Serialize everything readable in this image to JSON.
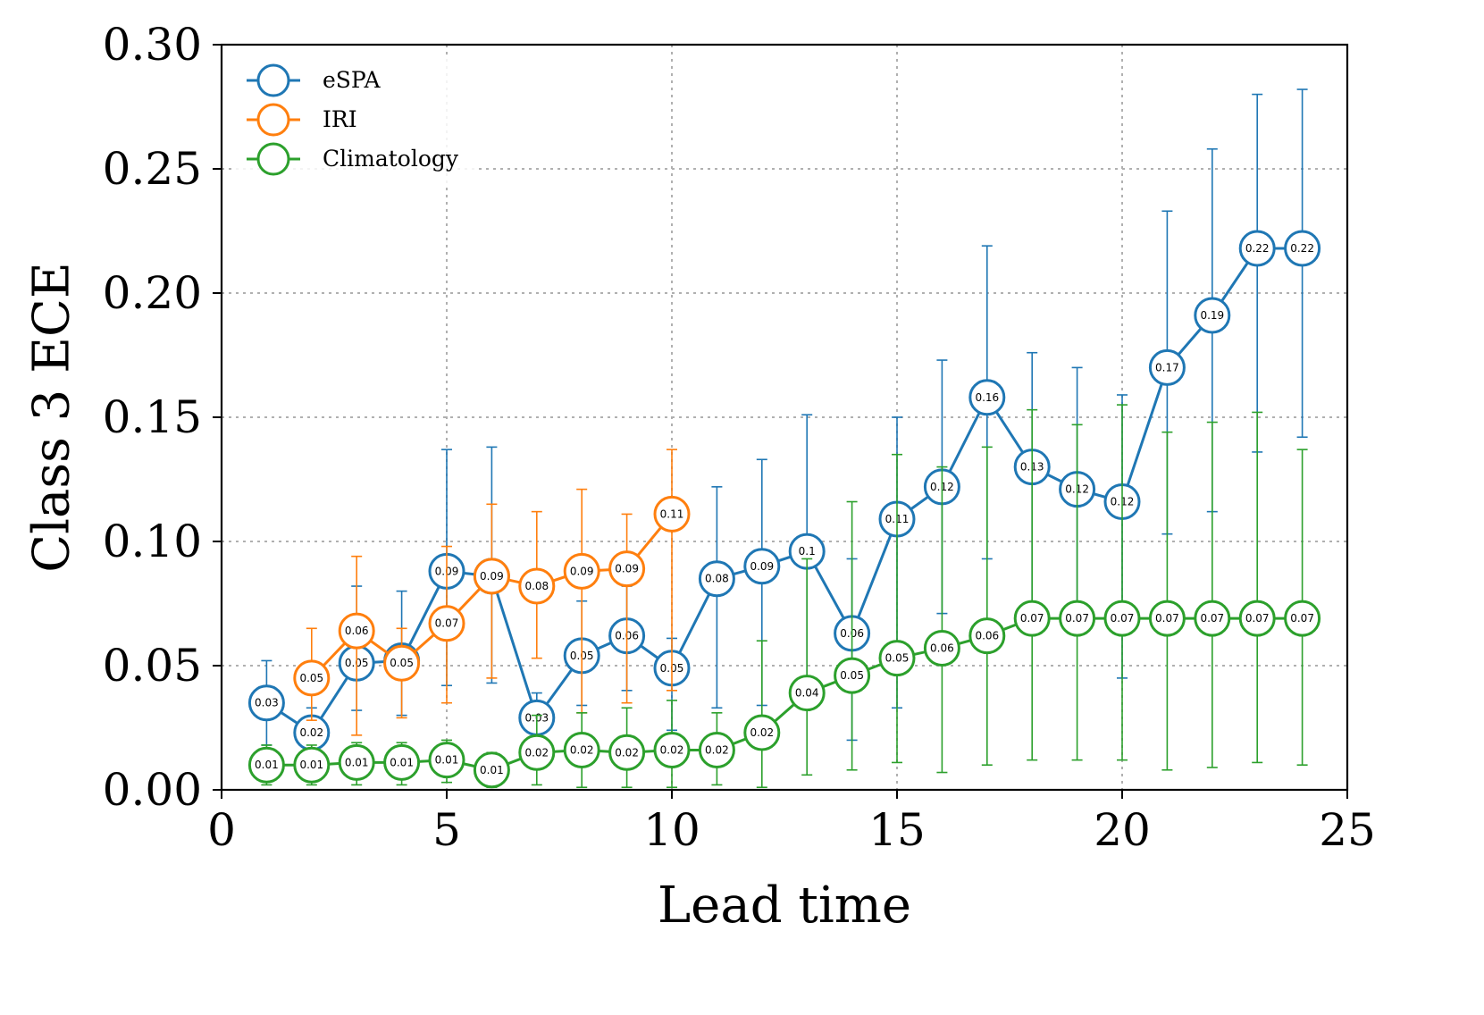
{
  "chart_data": {
    "type": "line",
    "title": "",
    "xlabel": "Lead time",
    "ylabel": "Class 3 ECE",
    "xlim": [
      0,
      25
    ],
    "ylim": [
      0,
      0.3
    ],
    "xticks": [
      0,
      5,
      10,
      15,
      20,
      25
    ],
    "xtick_labels": [
      "0",
      "5",
      "10",
      "15",
      "20",
      "25"
    ],
    "yticks": [
      0,
      0.05,
      0.1,
      0.15,
      0.2,
      0.25,
      0.3
    ],
    "ytick_labels": [
      "0.00",
      "0.05",
      "0.10",
      "0.15",
      "0.20",
      "0.25",
      "0.30"
    ],
    "grid": true,
    "legend_position": "top-left",
    "series": [
      {
        "name": "eSPA",
        "color": "#1f77b4",
        "x": [
          1,
          2,
          3,
          4,
          5,
          6,
          7,
          8,
          9,
          10,
          11,
          12,
          13,
          14,
          15,
          16,
          17,
          18,
          19,
          20,
          21,
          22,
          23,
          24
        ],
        "values": [
          0.035,
          0.023,
          0.051,
          0.052,
          0.088,
          0.086,
          0.029,
          0.054,
          0.062,
          0.049,
          0.085,
          0.09,
          0.096,
          0.063,
          0.109,
          0.122,
          0.158,
          0.13,
          0.121,
          0.116,
          0.17,
          0.191,
          0.218,
          0.218
        ],
        "labels": [
          "0.03",
          "0.02",
          "0.05",
          "0.05",
          "0.09",
          "0.09",
          "0.03",
          "0.05",
          "0.06",
          "0.05",
          "0.08",
          "0.09",
          "0.1",
          "0.06",
          "0.11",
          "0.12",
          "0.16",
          "0.13",
          "0.12",
          "0.12",
          "0.17",
          "0.19",
          "0.22",
          "0.22"
        ],
        "err_low": [
          0.018,
          0.013,
          0.032,
          0.03,
          0.042,
          0.043,
          0.021,
          0.034,
          0.04,
          0.024,
          0.033,
          0.034,
          0.04,
          0.02,
          0.033,
          0.071,
          0.093,
          0.07,
          0.069,
          0.045,
          0.103,
          0.112,
          0.136,
          0.142
        ],
        "err_high": [
          0.052,
          0.033,
          0.082,
          0.08,
          0.137,
          0.138,
          0.039,
          0.076,
          0.082,
          0.061,
          0.122,
          0.133,
          0.151,
          0.093,
          0.15,
          0.173,
          0.219,
          0.176,
          0.17,
          0.159,
          0.233,
          0.258,
          0.28,
          0.282
        ]
      },
      {
        "name": "IRI",
        "color": "#ff7f0e",
        "x": [
          2,
          3,
          4,
          5,
          6,
          7,
          8,
          9,
          10
        ],
        "values": [
          0.045,
          0.064,
          0.051,
          0.067,
          0.086,
          0.082,
          0.088,
          0.089,
          0.111
        ],
        "labels": [
          "0.05",
          "0.06",
          "0.05",
          "0.07",
          "0.09",
          "0.08",
          "0.09",
          "0.09",
          "0.11"
        ],
        "err_low": [
          0.028,
          0.022,
          0.029,
          0.035,
          0.045,
          0.053,
          0.031,
          0.035,
          0.04
        ],
        "err_high": [
          0.065,
          0.094,
          0.065,
          0.098,
          0.115,
          0.112,
          0.121,
          0.111,
          0.137
        ]
      },
      {
        "name": "Climatology",
        "color": "#2ca02c",
        "x": [
          1,
          2,
          3,
          4,
          5,
          6,
          7,
          8,
          9,
          10,
          11,
          12,
          13,
          14,
          15,
          16,
          17,
          18,
          19,
          20,
          21,
          22,
          23,
          24
        ],
        "values": [
          0.01,
          0.01,
          0.011,
          0.011,
          0.012,
          0.008,
          0.015,
          0.016,
          0.015,
          0.016,
          0.016,
          0.023,
          0.039,
          0.046,
          0.053,
          0.057,
          0.062,
          0.069,
          0.069,
          0.069,
          0.069,
          0.069,
          0.069,
          0.069
        ],
        "labels": [
          "0.01",
          "0.01",
          "0.01",
          "0.01",
          "0.01",
          "0.01",
          "0.02",
          "0.02",
          "0.02",
          "0.02",
          "0.02",
          "0.02",
          "0.04",
          "0.05",
          "0.05",
          "0.06",
          "0.06",
          "0.07",
          "0.07",
          "0.07",
          "0.07",
          "0.07",
          "0.07",
          "0.07"
        ],
        "err_low": [
          0.002,
          0.002,
          0.002,
          0.002,
          0.003,
          0.001,
          0.002,
          0.001,
          0.001,
          0.001,
          0.002,
          0.001,
          0.006,
          0.008,
          0.011,
          0.007,
          0.01,
          0.012,
          0.012,
          0.012,
          0.008,
          0.009,
          0.011,
          0.01
        ],
        "err_high": [
          0.018,
          0.018,
          0.019,
          0.019,
          0.02,
          0.015,
          0.03,
          0.031,
          0.033,
          0.036,
          0.031,
          0.06,
          0.093,
          0.116,
          0.135,
          0.13,
          0.138,
          0.153,
          0.147,
          0.155,
          0.144,
          0.148,
          0.152,
          0.137
        ]
      }
    ]
  }
}
